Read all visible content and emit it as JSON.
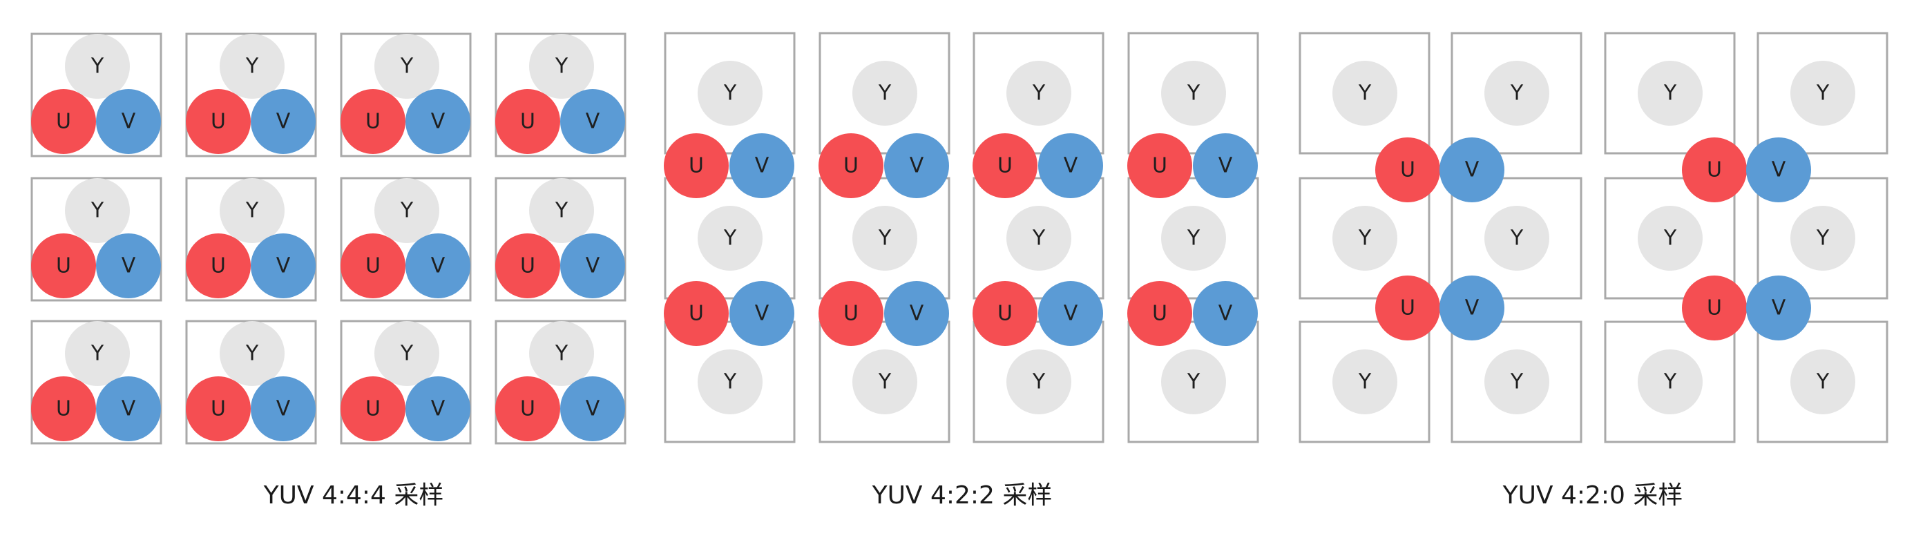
{
  "labels": {
    "y": "Y",
    "u": "U",
    "v": "V"
  },
  "colors": {
    "y": "#e5e5e5",
    "u": "#f54e52",
    "v": "#5b9bd5",
    "border": "#a9a9a9"
  },
  "panels": [
    {
      "id": "444",
      "caption": "YUV 4:4:4 采样"
    },
    {
      "id": "422",
      "caption": "YUV 4:2:2 采样"
    },
    {
      "id": "420",
      "caption": "YUV 4:2:0 采样"
    }
  ]
}
